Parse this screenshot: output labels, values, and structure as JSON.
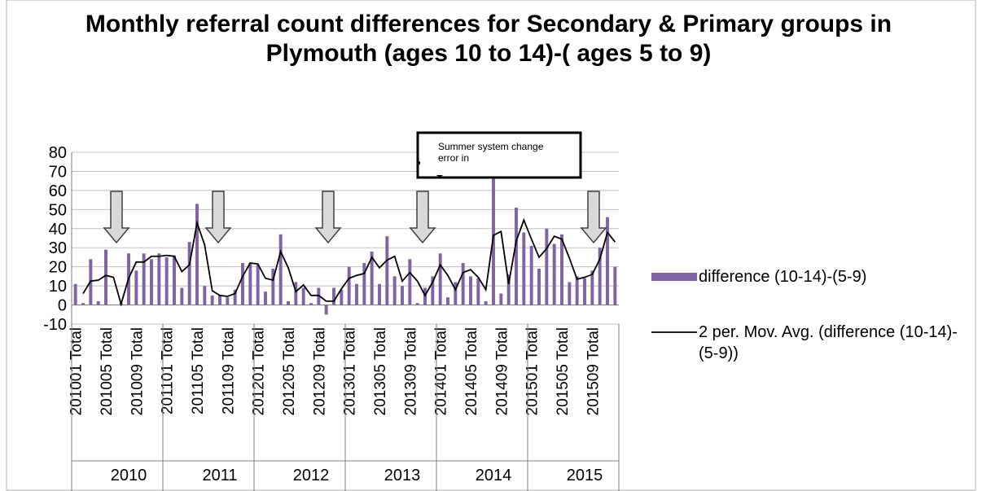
{
  "chart_data": {
    "type": "bar",
    "title": "Monthly referral count differences  for Secondary & Primary groups in Plymouth (ages 10 to 14)-( ages 5 to 9)",
    "annotation": "Summer system change error in",
    "categories": [
      "201001 Total",
      null,
      null,
      null,
      "201005 Total",
      null,
      null,
      null,
      "201009 Total",
      null,
      null,
      null,
      "201101 Total",
      null,
      null,
      null,
      "201105 Total",
      null,
      null,
      null,
      "201109 Total",
      null,
      null,
      null,
      "201201 Total",
      null,
      null,
      null,
      "201205 Total",
      null,
      null,
      null,
      "201209 Total",
      null,
      null,
      null,
      "201301 Total",
      null,
      null,
      null,
      "201305 Total",
      null,
      null,
      null,
      "201309 Total",
      null,
      null,
      null,
      "201401 Total",
      null,
      null,
      null,
      "201405 Total",
      null,
      null,
      null,
      "201409 Total",
      null,
      null,
      null,
      "201501 Total",
      null,
      null,
      null,
      "201505 Total",
      null,
      null,
      null,
      "201509 Total",
      null,
      null,
      null
    ],
    "year_groups": [
      "2010",
      "2011",
      "2012",
      "2013",
      "2014",
      "2015"
    ],
    "series": [
      {
        "name": "difference (10-14)-(5-9)",
        "color": "#8064a2",
        "values": [
          11,
          1,
          24,
          2,
          29,
          0,
          1,
          27,
          18,
          27,
          24,
          27,
          25,
          26,
          9,
          33,
          53,
          10,
          5,
          5,
          4,
          8,
          22,
          22,
          21,
          7,
          19,
          37,
          2,
          12,
          9,
          1,
          9,
          -5,
          9,
          8,
          20,
          11,
          22,
          28,
          11,
          36,
          15,
          10,
          24,
          1,
          9,
          15,
          27,
          4,
          12,
          22,
          15,
          14,
          2,
          71,
          6,
          16,
          51,
          38,
          31,
          19,
          40,
          32,
          37,
          12,
          15,
          14,
          18,
          30,
          46,
          20
        ]
      },
      {
        "name": "2 per. Mov. Avg. (difference (10-14)-(5-9))",
        "type": "line",
        "color": "#000000",
        "values": [
          null,
          6,
          12.5,
          13,
          15.5,
          14.5,
          0.5,
          14,
          22.5,
          22.5,
          25.5,
          25.5,
          26,
          25.5,
          17.5,
          21,
          43,
          31.5,
          7.5,
          5,
          4.5,
          6,
          15,
          22,
          21.5,
          14,
          13,
          28,
          19.5,
          7,
          10.5,
          5,
          5,
          2,
          2,
          8.5,
          14,
          15.5,
          16.5,
          25,
          19.5,
          23.5,
          25.5,
          12.5,
          17,
          12.5,
          5,
          12,
          21,
          15.5,
          8,
          17,
          18.5,
          14.5,
          8,
          36.5,
          38.5,
          11,
          33.5,
          44.5,
          34.5,
          25,
          29.5,
          36,
          34.5,
          24.5,
          13.5,
          14.5,
          16,
          24,
          38,
          33
        ]
      }
    ],
    "ylim": [
      -10,
      80
    ],
    "yticks": [
      -10,
      0,
      10,
      20,
      30,
      40,
      50,
      60,
      70,
      80
    ],
    "grid": true
  }
}
